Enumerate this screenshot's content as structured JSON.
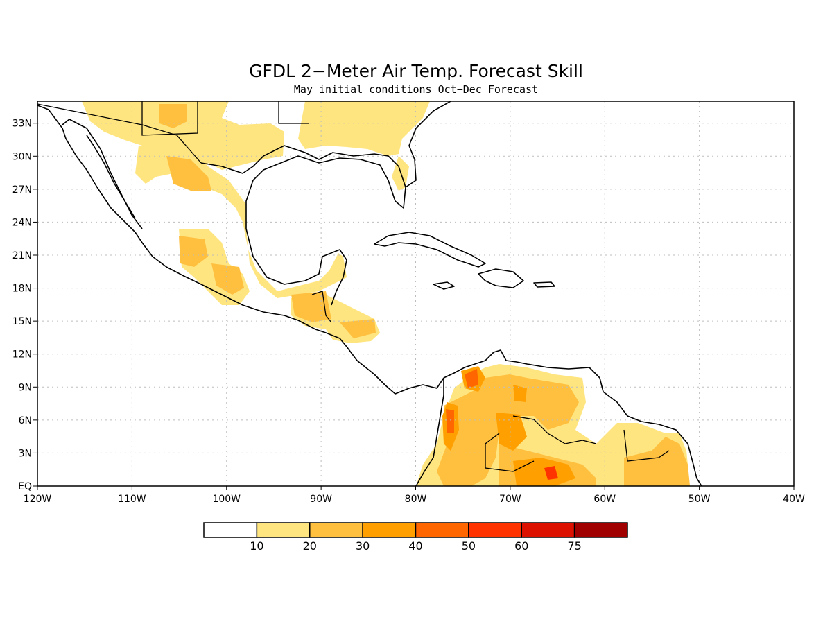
{
  "title": "GFDL 2−Meter Air Temp. Forecast Skill",
  "subtitle": "May initial conditions  Oct−Dec Forecast",
  "map": {
    "lon_range": [
      -120,
      -40
    ],
    "lat_range": [
      0,
      35
    ],
    "grid": "dotted",
    "x_ticks": [
      {
        "lon": -120,
        "label": "120W"
      },
      {
        "lon": -110,
        "label": "110W"
      },
      {
        "lon": -100,
        "label": "100W"
      },
      {
        "lon": -90,
        "label": "90W"
      },
      {
        "lon": -80,
        "label": "80W"
      },
      {
        "lon": -70,
        "label": "70W"
      },
      {
        "lon": -60,
        "label": "60W"
      },
      {
        "lon": -50,
        "label": "50W"
      },
      {
        "lon": -40,
        "label": "40W"
      }
    ],
    "y_ticks": [
      {
        "lat": 0,
        "label": "EQ"
      },
      {
        "lat": 3,
        "label": "3N"
      },
      {
        "lat": 6,
        "label": "6N"
      },
      {
        "lat": 9,
        "label": "9N"
      },
      {
        "lat": 12,
        "label": "12N"
      },
      {
        "lat": 15,
        "label": "15N"
      },
      {
        "lat": 18,
        "label": "18N"
      },
      {
        "lat": 21,
        "label": "21N"
      },
      {
        "lat": 24,
        "label": "24N"
      },
      {
        "lat": 27,
        "label": "27N"
      },
      {
        "lat": 30,
        "label": "30N"
      },
      {
        "lat": 33,
        "label": "33N"
      }
    ]
  },
  "colorbar": {
    "colors": [
      "#ffffff",
      "#ffe57f",
      "#ffc040",
      "#ffa000",
      "#ff6600",
      "#ff3300",
      "#dd1100",
      "#a00000"
    ],
    "labels": [
      "10",
      "20",
      "30",
      "40",
      "50",
      "60",
      "75"
    ]
  }
}
